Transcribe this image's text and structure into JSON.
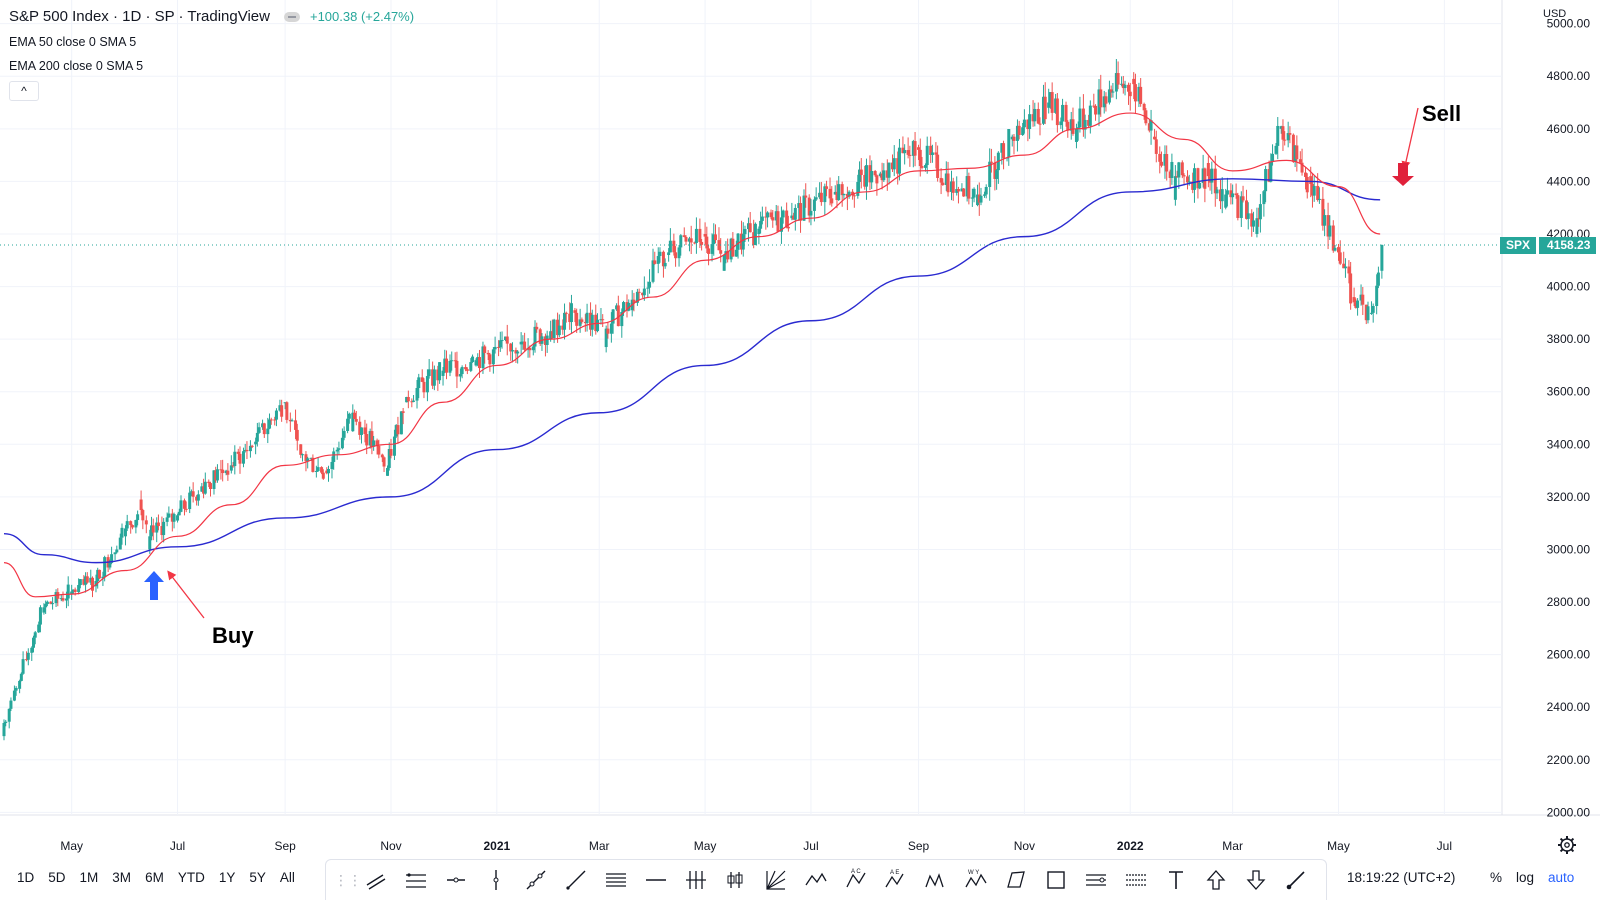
{
  "header": {
    "title": "S&P 500 Index · 1D · SP · TradingView",
    "change": "+100.38 (+2.47%)",
    "indicators": [
      "EMA 50 close 0 SMA 5",
      "EMA 200 close 0 SMA 5"
    ],
    "collapse_glyph": "^"
  },
  "price_axis": {
    "currency": "USD",
    "ticks": [
      "5000.00",
      "4800.00",
      "4600.00",
      "4400.00",
      "4200.00",
      "4000.00",
      "3800.00",
      "3600.00",
      "3400.00",
      "3200.00",
      "3000.00",
      "2800.00",
      "2600.00",
      "2400.00",
      "2200.00",
      "2000.00"
    ],
    "last_symbol": "SPX",
    "last_price": "4158.23"
  },
  "time_axis": {
    "labels": [
      "May",
      "Jul",
      "Sep",
      "Nov",
      "2021",
      "Mar",
      "May",
      "Jul",
      "Sep",
      "Nov",
      "2022",
      "Mar",
      "May",
      "Jul"
    ]
  },
  "annotations": {
    "buy": "Buy",
    "sell": "Sell"
  },
  "bottom": {
    "ranges": [
      "1D",
      "5D",
      "1M",
      "3M",
      "6M",
      "YTD",
      "1Y",
      "5Y",
      "All"
    ],
    "clock": "18:19:22 (UTC+2)",
    "percent": "%",
    "log": "log",
    "auto": "auto"
  },
  "toolbar_icons": [
    "parallel-channel-icon",
    "regression-trend-icon",
    "horizontal-ray-icon",
    "vertical-line-icon",
    "trend-line-icon",
    "ray-icon",
    "fib-retracement-icon",
    "horizontal-line-icon",
    "pitchfork-icon",
    "long-position-icon",
    "gann-fan-icon",
    "xabcd-pattern-icon",
    "abcd-pattern-icon",
    "elliott-wave-icon",
    "head-shoulders-icon",
    "wxy-wave-icon",
    "polyline-icon",
    "rectangle-icon",
    "date-range-icon",
    "price-range-icon",
    "text-icon",
    "arrow-up-icon",
    "arrow-down-icon",
    "brush-icon"
  ],
  "colors": {
    "up": "#26a69a",
    "down": "#ef5350",
    "ema50": "#f23645",
    "ema200": "#2a2ad0",
    "buy_arrow": "#2962ff",
    "sell_arrow": "#e0213b"
  },
  "chart_data": {
    "type": "candlestick",
    "y_scale": "linear",
    "ylim": [
      1990,
      5090
    ],
    "x_range": [
      "2020-03-23",
      "2022-07-25"
    ],
    "series": [
      {
        "name": "EMA 50",
        "points": [
          [
            "2020-03-23",
            2950
          ],
          [
            "2020-04-10",
            2820
          ],
          [
            "2020-05-01",
            2830
          ],
          [
            "2020-06-01",
            2920
          ],
          [
            "2020-07-01",
            3050
          ],
          [
            "2020-08-01",
            3170
          ],
          [
            "2020-09-01",
            3320
          ],
          [
            "2020-10-01",
            3360
          ],
          [
            "2020-11-01",
            3400
          ],
          [
            "2020-12-01",
            3560
          ],
          [
            "2021-01-01",
            3700
          ],
          [
            "2021-02-01",
            3800
          ],
          [
            "2021-03-01",
            3860
          ],
          [
            "2021-04-01",
            3960
          ],
          [
            "2021-05-01",
            4100
          ],
          [
            "2021-06-01",
            4190
          ],
          [
            "2021-07-01",
            4260
          ],
          [
            "2021-08-01",
            4360
          ],
          [
            "2021-09-01",
            4440
          ],
          [
            "2021-10-01",
            4450
          ],
          [
            "2021-11-01",
            4500
          ],
          [
            "2021-12-01",
            4600
          ],
          [
            "2022-01-01",
            4660
          ],
          [
            "2022-02-01",
            4560
          ],
          [
            "2022-03-01",
            4440
          ],
          [
            "2022-04-01",
            4480
          ],
          [
            "2022-05-01",
            4380
          ],
          [
            "2022-05-25",
            4200
          ]
        ]
      },
      {
        "name": "EMA 200",
        "points": [
          [
            "2020-03-23",
            3060
          ],
          [
            "2020-04-15",
            2980
          ],
          [
            "2020-05-15",
            2950
          ],
          [
            "2020-07-01",
            3010
          ],
          [
            "2020-09-01",
            3120
          ],
          [
            "2020-11-01",
            3200
          ],
          [
            "2021-01-01",
            3380
          ],
          [
            "2021-03-01",
            3520
          ],
          [
            "2021-05-01",
            3700
          ],
          [
            "2021-07-01",
            3870
          ],
          [
            "2021-09-01",
            4040
          ],
          [
            "2021-11-01",
            4190
          ],
          [
            "2022-01-01",
            4360
          ],
          [
            "2022-03-01",
            4410
          ],
          [
            "2022-04-15",
            4400
          ],
          [
            "2022-05-25",
            4330
          ]
        ]
      }
    ],
    "candles": [
      [
        "2020-03-23",
        2290,
        2360,
        2190,
        2340
      ],
      [
        "2020-04-01",
        2470,
        2530,
        2440,
        2500
      ],
      [
        "2020-04-15",
        2760,
        2800,
        2720,
        2780
      ],
      [
        "2020-05-01",
        2830,
        2880,
        2780,
        2840
      ],
      [
        "2020-05-15",
        2860,
        2910,
        2820,
        2880
      ],
      [
        "2020-06-01",
        3050,
        3100,
        3020,
        3080
      ],
      [
        "2020-06-10",
        3190,
        3230,
        3140,
        3150
      ],
      [
        "2020-06-15",
        3000,
        3070,
        2960,
        3050
      ],
      [
        "2020-07-01",
        3110,
        3150,
        3090,
        3130
      ],
      [
        "2020-07-15",
        3220,
        3260,
        3200,
        3240
      ],
      [
        "2020-08-01",
        3300,
        3340,
        3280,
        3320
      ],
      [
        "2020-08-15",
        3400,
        3430,
        3380,
        3410
      ],
      [
        "2020-09-01",
        3560,
        3590,
        3520,
        3560
      ],
      [
        "2020-09-10",
        3400,
        3440,
        3350,
        3360
      ],
      [
        "2020-09-25",
        3300,
        3340,
        3230,
        3290
      ],
      [
        "2020-10-10",
        3450,
        3540,
        3430,
        3520
      ],
      [
        "2020-10-30",
        3280,
        3350,
        3240,
        3310
      ],
      [
        "2020-11-10",
        3560,
        3640,
        3540,
        3580
      ],
      [
        "2020-12-01",
        3660,
        3700,
        3640,
        3680
      ],
      [
        "2020-12-20",
        3700,
        3740,
        3680,
        3720
      ],
      [
        "2021-01-15",
        3780,
        3830,
        3760,
        3790
      ],
      [
        "2021-02-01",
        3800,
        3850,
        3780,
        3830
      ],
      [
        "2021-02-15",
        3910,
        3950,
        3880,
        3900
      ],
      [
        "2021-03-05",
        3770,
        3860,
        3720,
        3840
      ],
      [
        "2021-03-20",
        3910,
        3980,
        3880,
        3950
      ],
      [
        "2021-04-10",
        4120,
        4150,
        4100,
        4130
      ],
      [
        "2021-05-01",
        4200,
        4240,
        4170,
        4190
      ],
      [
        "2021-05-12",
        4060,
        4130,
        4050,
        4120
      ],
      [
        "2021-06-01",
        4200,
        4240,
        4190,
        4220
      ],
      [
        "2021-06-20",
        4260,
        4290,
        4240,
        4270
      ],
      [
        "2021-07-15",
        4350,
        4380,
        4330,
        4360
      ],
      [
        "2021-08-10",
        4420,
        4440,
        4400,
        4430
      ],
      [
        "2021-09-01",
        4530,
        4540,
        4510,
        4520
      ],
      [
        "2021-09-20",
        4360,
        4440,
        4300,
        4400
      ],
      [
        "2021-10-05",
        4310,
        4380,
        4280,
        4350
      ],
      [
        "2021-10-25",
        4560,
        4590,
        4540,
        4570
      ],
      [
        "2021-11-15",
        4680,
        4720,
        4660,
        4700
      ],
      [
        "2021-12-01",
        4550,
        4620,
        4500,
        4600
      ],
      [
        "2021-12-20",
        4700,
        4780,
        4680,
        4750
      ],
      [
        "2022-01-03",
        4790,
        4810,
        4760,
        4770
      ],
      [
        "2022-01-15",
        4570,
        4640,
        4520,
        4560
      ],
      [
        "2022-01-27",
        4330,
        4440,
        4230,
        4420
      ],
      [
        "2022-02-15",
        4470,
        4500,
        4400,
        4420
      ],
      [
        "2022-02-25",
        4300,
        4380,
        4120,
        4350
      ],
      [
        "2022-03-15",
        4200,
        4290,
        4160,
        4260
      ],
      [
        "2022-03-29",
        4600,
        4630,
        4570,
        4610
      ],
      [
        "2022-04-15",
        4420,
        4450,
        4380,
        4390
      ],
      [
        "2022-05-01",
        4150,
        4300,
        4060,
        4130
      ],
      [
        "2022-05-10",
        3960,
        4030,
        3890,
        3940
      ],
      [
        "2022-05-20",
        3900,
        3950,
        3810,
        3900
      ],
      [
        "2022-05-26",
        4060,
        4160,
        4030,
        4158
      ]
    ]
  }
}
